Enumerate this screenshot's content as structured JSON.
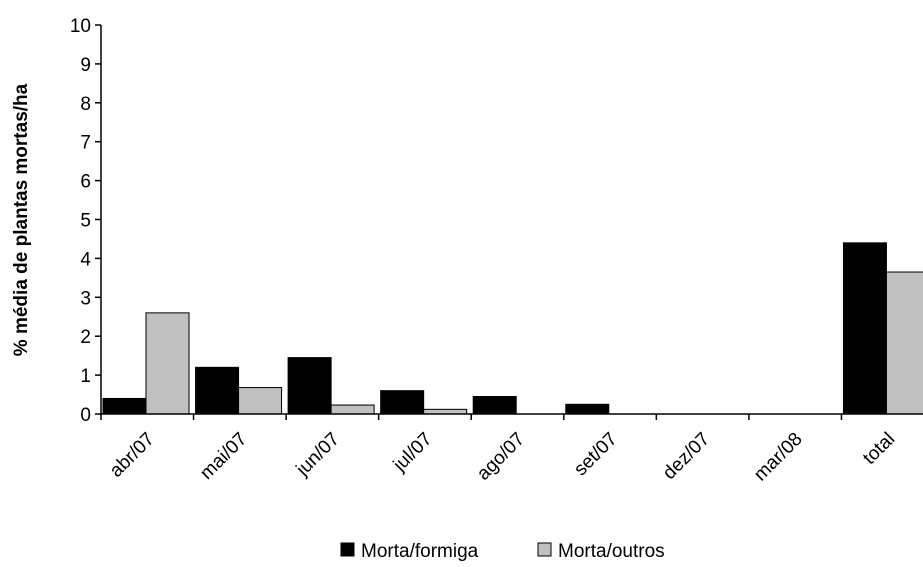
{
  "chart_data": {
    "type": "bar",
    "title": "",
    "xlabel": "",
    "ylabel": "% média de plantas mortas/ha",
    "ylim": [
      0,
      10
    ],
    "yticks": [
      0,
      1,
      2,
      3,
      4,
      5,
      6,
      7,
      8,
      9,
      10
    ],
    "grid": false,
    "legend_position": "bottom",
    "categories": [
      "abr/07",
      "mai/07",
      "jun/07",
      "jul/07",
      "ago/07",
      "set/07",
      "dez/07",
      "mar/08",
      "total"
    ],
    "series": [
      {
        "name": "Morta/formiga",
        "color": "#000000",
        "values": [
          0.4,
          1.2,
          1.45,
          0.6,
          0.45,
          0.25,
          0,
          0,
          4.4
        ]
      },
      {
        "name": "Morta/outros",
        "color": "#c0c0c0",
        "values": [
          2.6,
          0.68,
          0.23,
          0.12,
          0,
          0,
          0,
          0,
          3.65
        ]
      }
    ]
  }
}
